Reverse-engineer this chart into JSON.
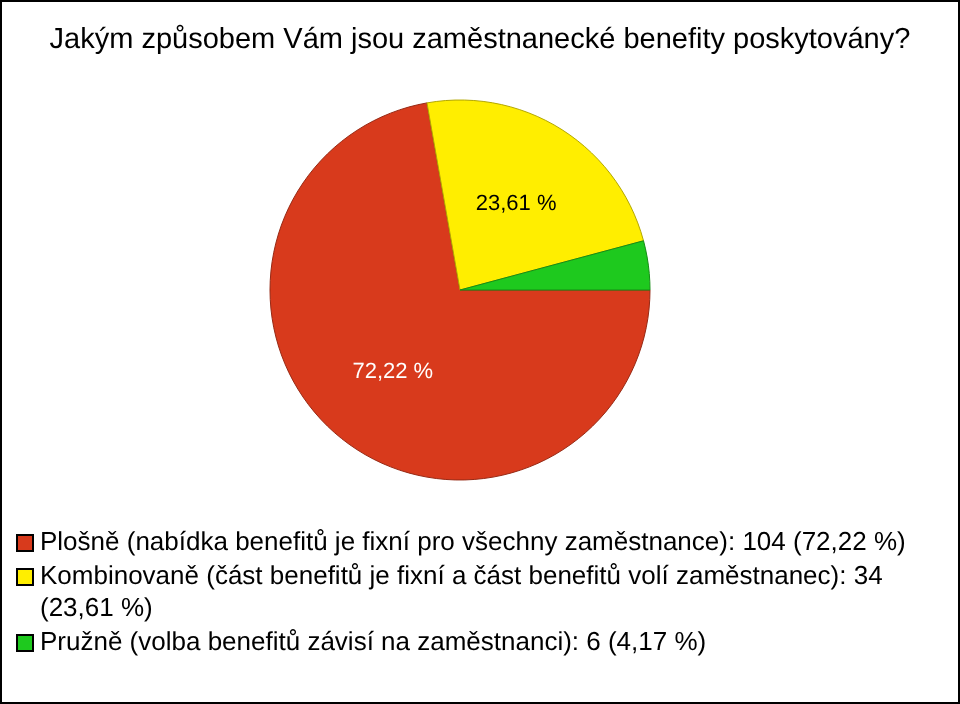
{
  "chart_data": {
    "type": "pie",
    "title": "Jakým způsobem Vám jsou zaměstnanecké benefity poskytovány?",
    "categories": [
      "Plošně (nabídka benefitů je fixní pro všechny zaměstnance): 104 (72,22 %)",
      "Kombinovaně (část benefitů je fixní a část benefitů volí zaměstnanec): 34 (23,61 %)",
      "Pružně (volba benefitů závisí na zaměstnanci): 6 (4,17 %)"
    ],
    "values": [
      72.22,
      23.61,
      4.17
    ],
    "colors": [
      "#d83a1c",
      "#ffee00",
      "#1ec91e"
    ],
    "value_labels": [
      "72,22 %",
      "23,61 %",
      null
    ],
    "legend": "bottom"
  }
}
